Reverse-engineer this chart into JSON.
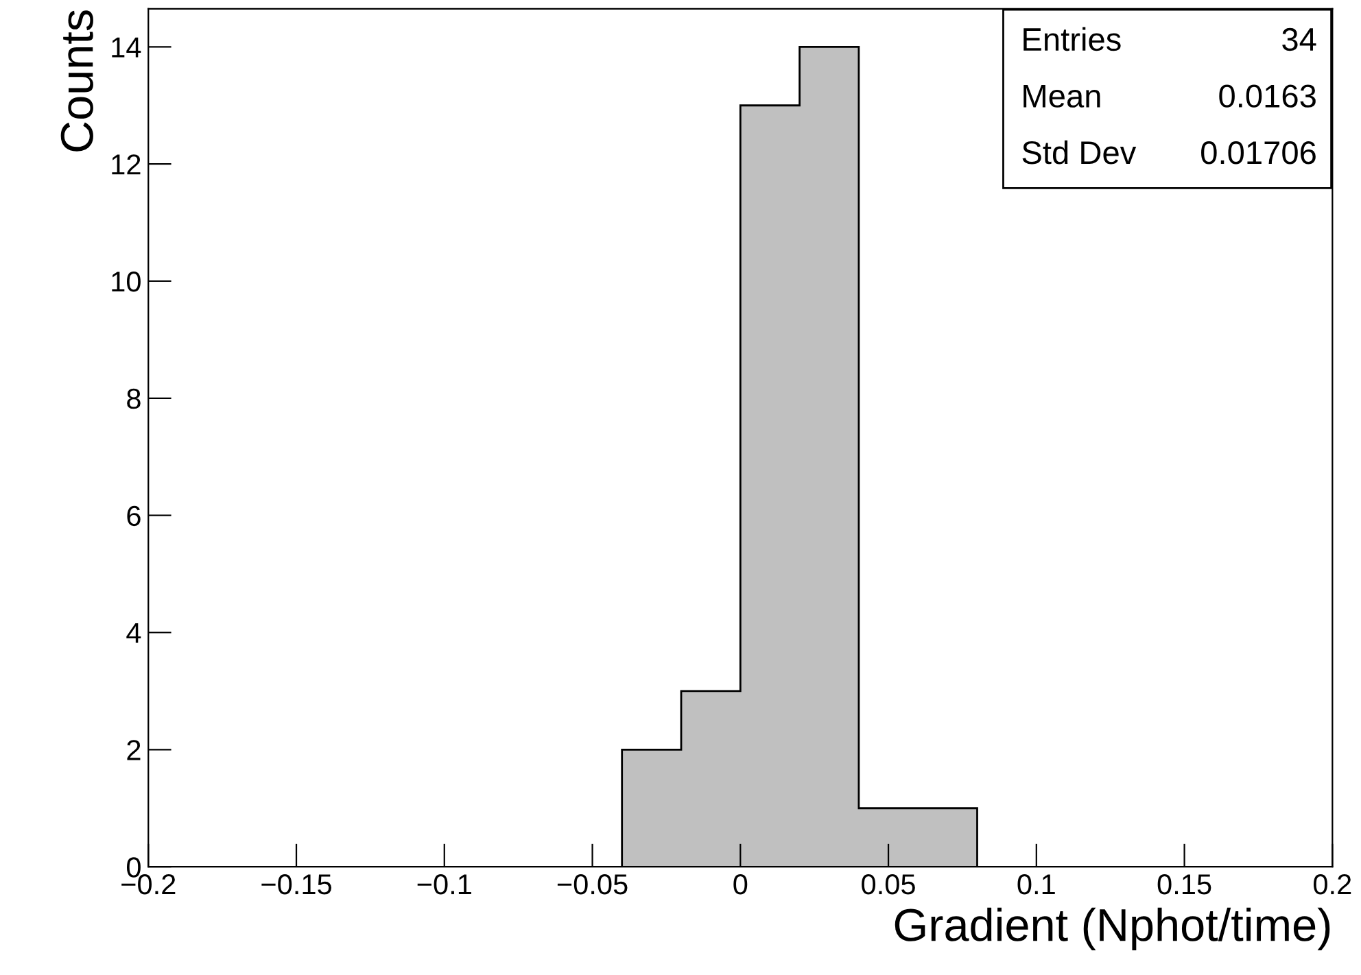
{
  "chart_data": {
    "type": "histogram",
    "bins": [
      -0.04,
      -0.02,
      0,
      0.02,
      0.04,
      0.06,
      0.08
    ],
    "values": [
      2,
      3,
      13,
      14,
      1,
      1
    ],
    "color": "#c0c0c0",
    "xlabel": "Gradient (Nphot/time)",
    "ylabel": "Counts",
    "xlim": [
      -0.2,
      0.2
    ],
    "ylim": [
      0,
      14.65
    ],
    "xticks": [
      {
        "value": -0.2,
        "label": "−0.2"
      },
      {
        "value": -0.15,
        "label": "−0.15"
      },
      {
        "value": -0.1,
        "label": "−0.1"
      },
      {
        "value": -0.05,
        "label": "−0.05"
      },
      0,
      0.05,
      0.1,
      0.15,
      0.2
    ],
    "yticks": [
      0,
      2,
      4,
      6,
      8,
      10,
      12,
      14
    ],
    "grid": false,
    "legend": false,
    "annotations": [
      "Entries",
      "34",
      "Mean",
      "0.0163",
      "Std Dev",
      "0.01706"
    ]
  }
}
